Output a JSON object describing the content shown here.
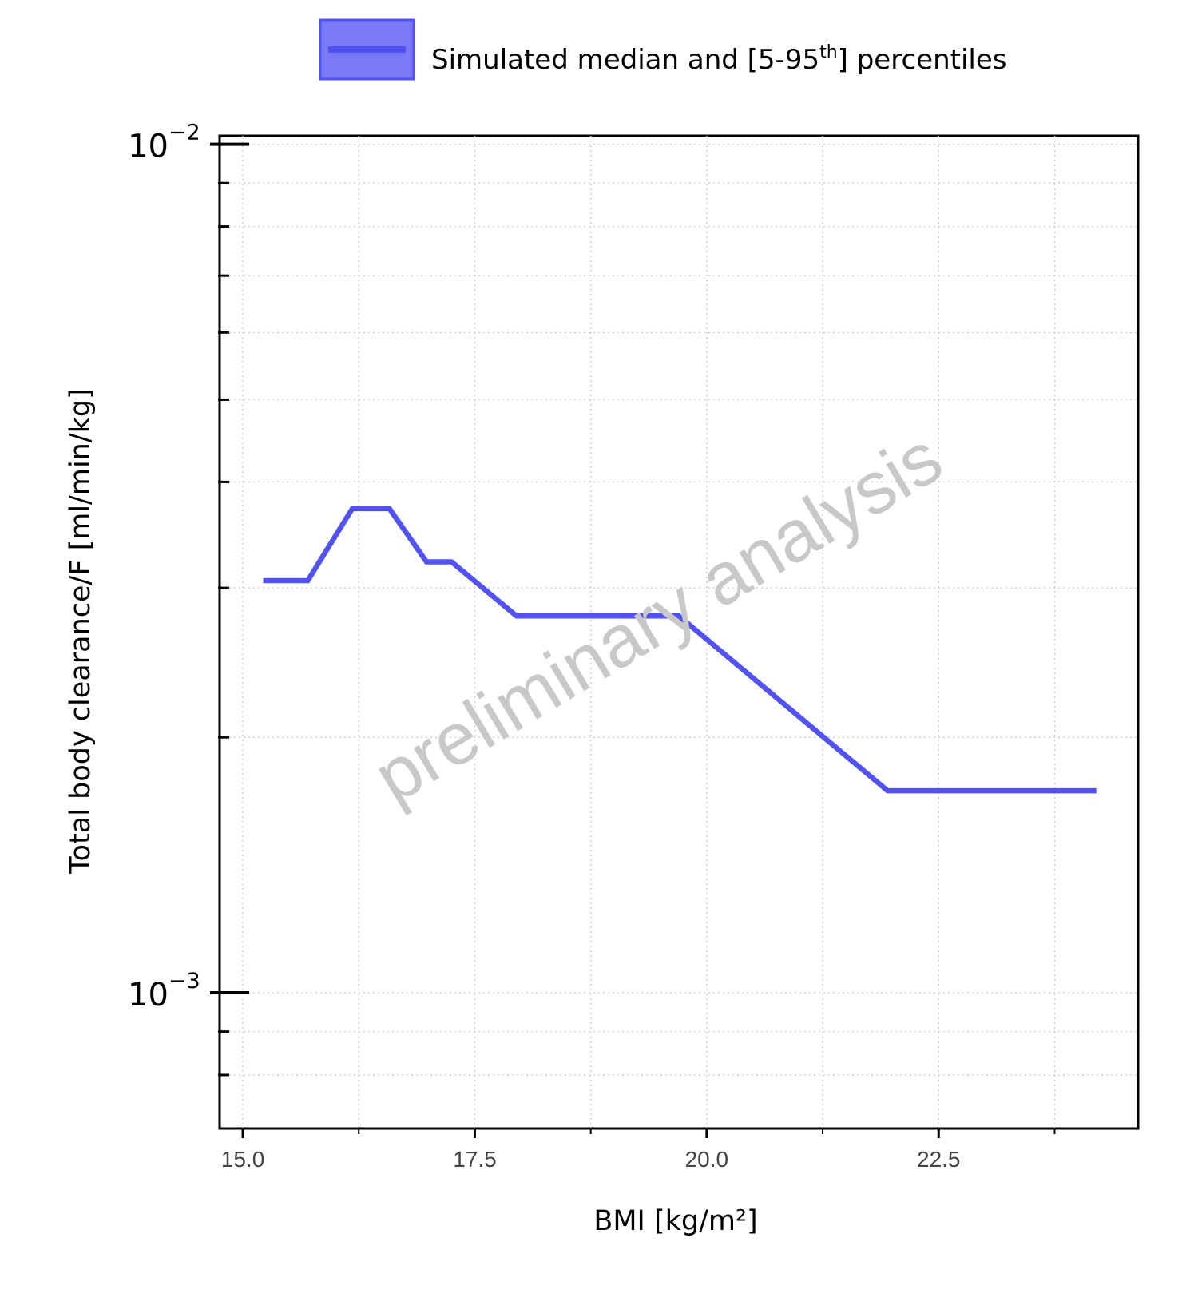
{
  "chart_data": {
    "type": "line",
    "xlabel": "BMI [kg/m²]",
    "ylabel": "Total body clearance/F [ml/min/kg]",
    "xlim": [
      14.75,
      24.65
    ],
    "ylim_log10": [
      -3.16,
      -1.99
    ],
    "y_scale": "log",
    "x_ticks": [
      "15.0",
      "17.5",
      "20.0",
      "22.5"
    ],
    "x_tick_values": [
      15.0,
      17.5,
      20.0,
      22.5
    ],
    "x_minor_tick_values": [
      16.25,
      18.75,
      21.25,
      23.75
    ],
    "y_ticks": [
      {
        "base": "10",
        "exp": "−2",
        "value": 0.01
      },
      {
        "base": "10",
        "exp": "−3",
        "value": 0.001
      }
    ],
    "y_minor_tick_values": [
      0.0009,
      0.0008,
      0.002,
      0.003,
      0.004,
      0.005,
      0.006,
      0.007,
      0.008,
      0.009
    ],
    "grid": true,
    "legend_position": "top",
    "series": [
      {
        "name": "Simulated median and [5-95th] percentiles",
        "color": "#5252f2",
        "band_fill": "#7a7af7",
        "x": [
          15.22,
          15.7,
          16.18,
          16.58,
          16.98,
          17.25,
          17.95,
          19.7,
          21.95,
          24.2
        ],
        "y": [
          0.00306,
          0.00306,
          0.00372,
          0.00372,
          0.00322,
          0.00322,
          0.00278,
          0.00278,
          0.00173,
          0.00173
        ]
      }
    ],
    "legend": {
      "label_main": "Simulated median and [5-95",
      "label_sup": "th",
      "label_end": "] percentiles"
    },
    "watermark": "preliminary analysis"
  }
}
